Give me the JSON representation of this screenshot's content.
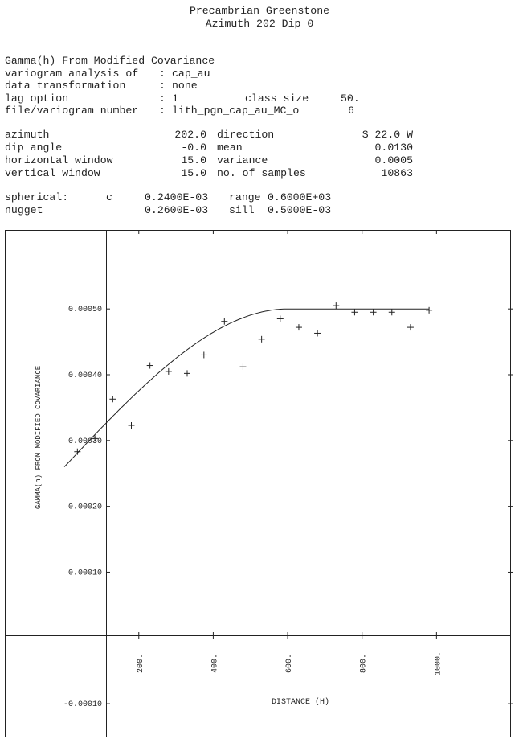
{
  "header": {
    "title_line1": "Precambrian Greenstone",
    "title_line2": "Azimuth 202 Dip 0"
  },
  "info": {
    "line1": "Gamma(h) From Modified Covariance",
    "variogram_label": "variogram analysis of",
    "variogram_value": "cap_au",
    "transform_label": "data transformation",
    "transform_value": "none",
    "lag_label": "lag option",
    "lag_value": "1",
    "class_size_label": "class size",
    "class_size_value": "50.",
    "file_label": "file/variogram number",
    "file_value": "lith_pgn_cap_au_MC_o",
    "file_number": "6"
  },
  "params": {
    "rows": [
      {
        "label": "azimuth",
        "value": "202.0",
        "label2": "direction",
        "value2": "S 22.0 W"
      },
      {
        "label": "dip angle",
        "value": "-0.0",
        "label2": "mean",
        "value2": "0.0130"
      },
      {
        "label": "horizontal window",
        "value": "15.0",
        "label2": "variance",
        "value2": "0.0005"
      },
      {
        "label": "vertical window",
        "value": "15.0",
        "label2": "no. of samples",
        "value2": "10863"
      }
    ]
  },
  "model": {
    "row1_label": "spherical:",
    "row1_c": "c",
    "row1_value": "0.2400E-03",
    "row1_label2": "range",
    "row1_value2": "0.6000E+03",
    "row2_label": "nugget",
    "row2_value": "0.2600E-03",
    "row2_label2": "sill",
    "row2_value2": "0.5000E-03"
  },
  "chart_data": {
    "type": "scatter",
    "xlabel": "DISTANCE (H)",
    "ylabel": "GAMMA(h) FROM MODIFIED COVARIANCE",
    "xlim": [
      -160,
      1200
    ],
    "ylim": [
      -0.00015,
      0.00062
    ],
    "x_ticks": [
      200,
      400,
      600,
      800,
      1000
    ],
    "x_tick_labels": [
      "200.",
      "400.",
      "600.",
      "800.",
      "1000."
    ],
    "y_ticks": [
      -0.0001,
      0.0001,
      0.0002,
      0.0003,
      0.0004,
      0.0005
    ],
    "y_tick_labels": [
      "-0.00010",
      "0.00010",
      "0.00020",
      "0.00030",
      "0.00040",
      "0.00050"
    ],
    "points": {
      "name": "experimental variogram",
      "marker": "+",
      "x": [
        35,
        82,
        130,
        180,
        230,
        280,
        330,
        375,
        430,
        480,
        530,
        580,
        630,
        680,
        730,
        780,
        830,
        880,
        930,
        980
      ],
      "y": [
        0.000283,
        0.000303,
        0.000363,
        0.000323,
        0.000414,
        0.000405,
        0.000402,
        0.00043,
        0.000481,
        0.000412,
        0.000454,
        0.000485,
        0.000472,
        0.000463,
        0.000505,
        0.000495,
        0.000495,
        0.000495,
        0.000472,
        0.000498
      ]
    },
    "model_curve": {
      "name": "spherical model",
      "nugget": 0.00026,
      "c": 0.00024,
      "range": 600,
      "x_max": 980
    },
    "grid": false,
    "legend": "none",
    "color": "#222222"
  }
}
